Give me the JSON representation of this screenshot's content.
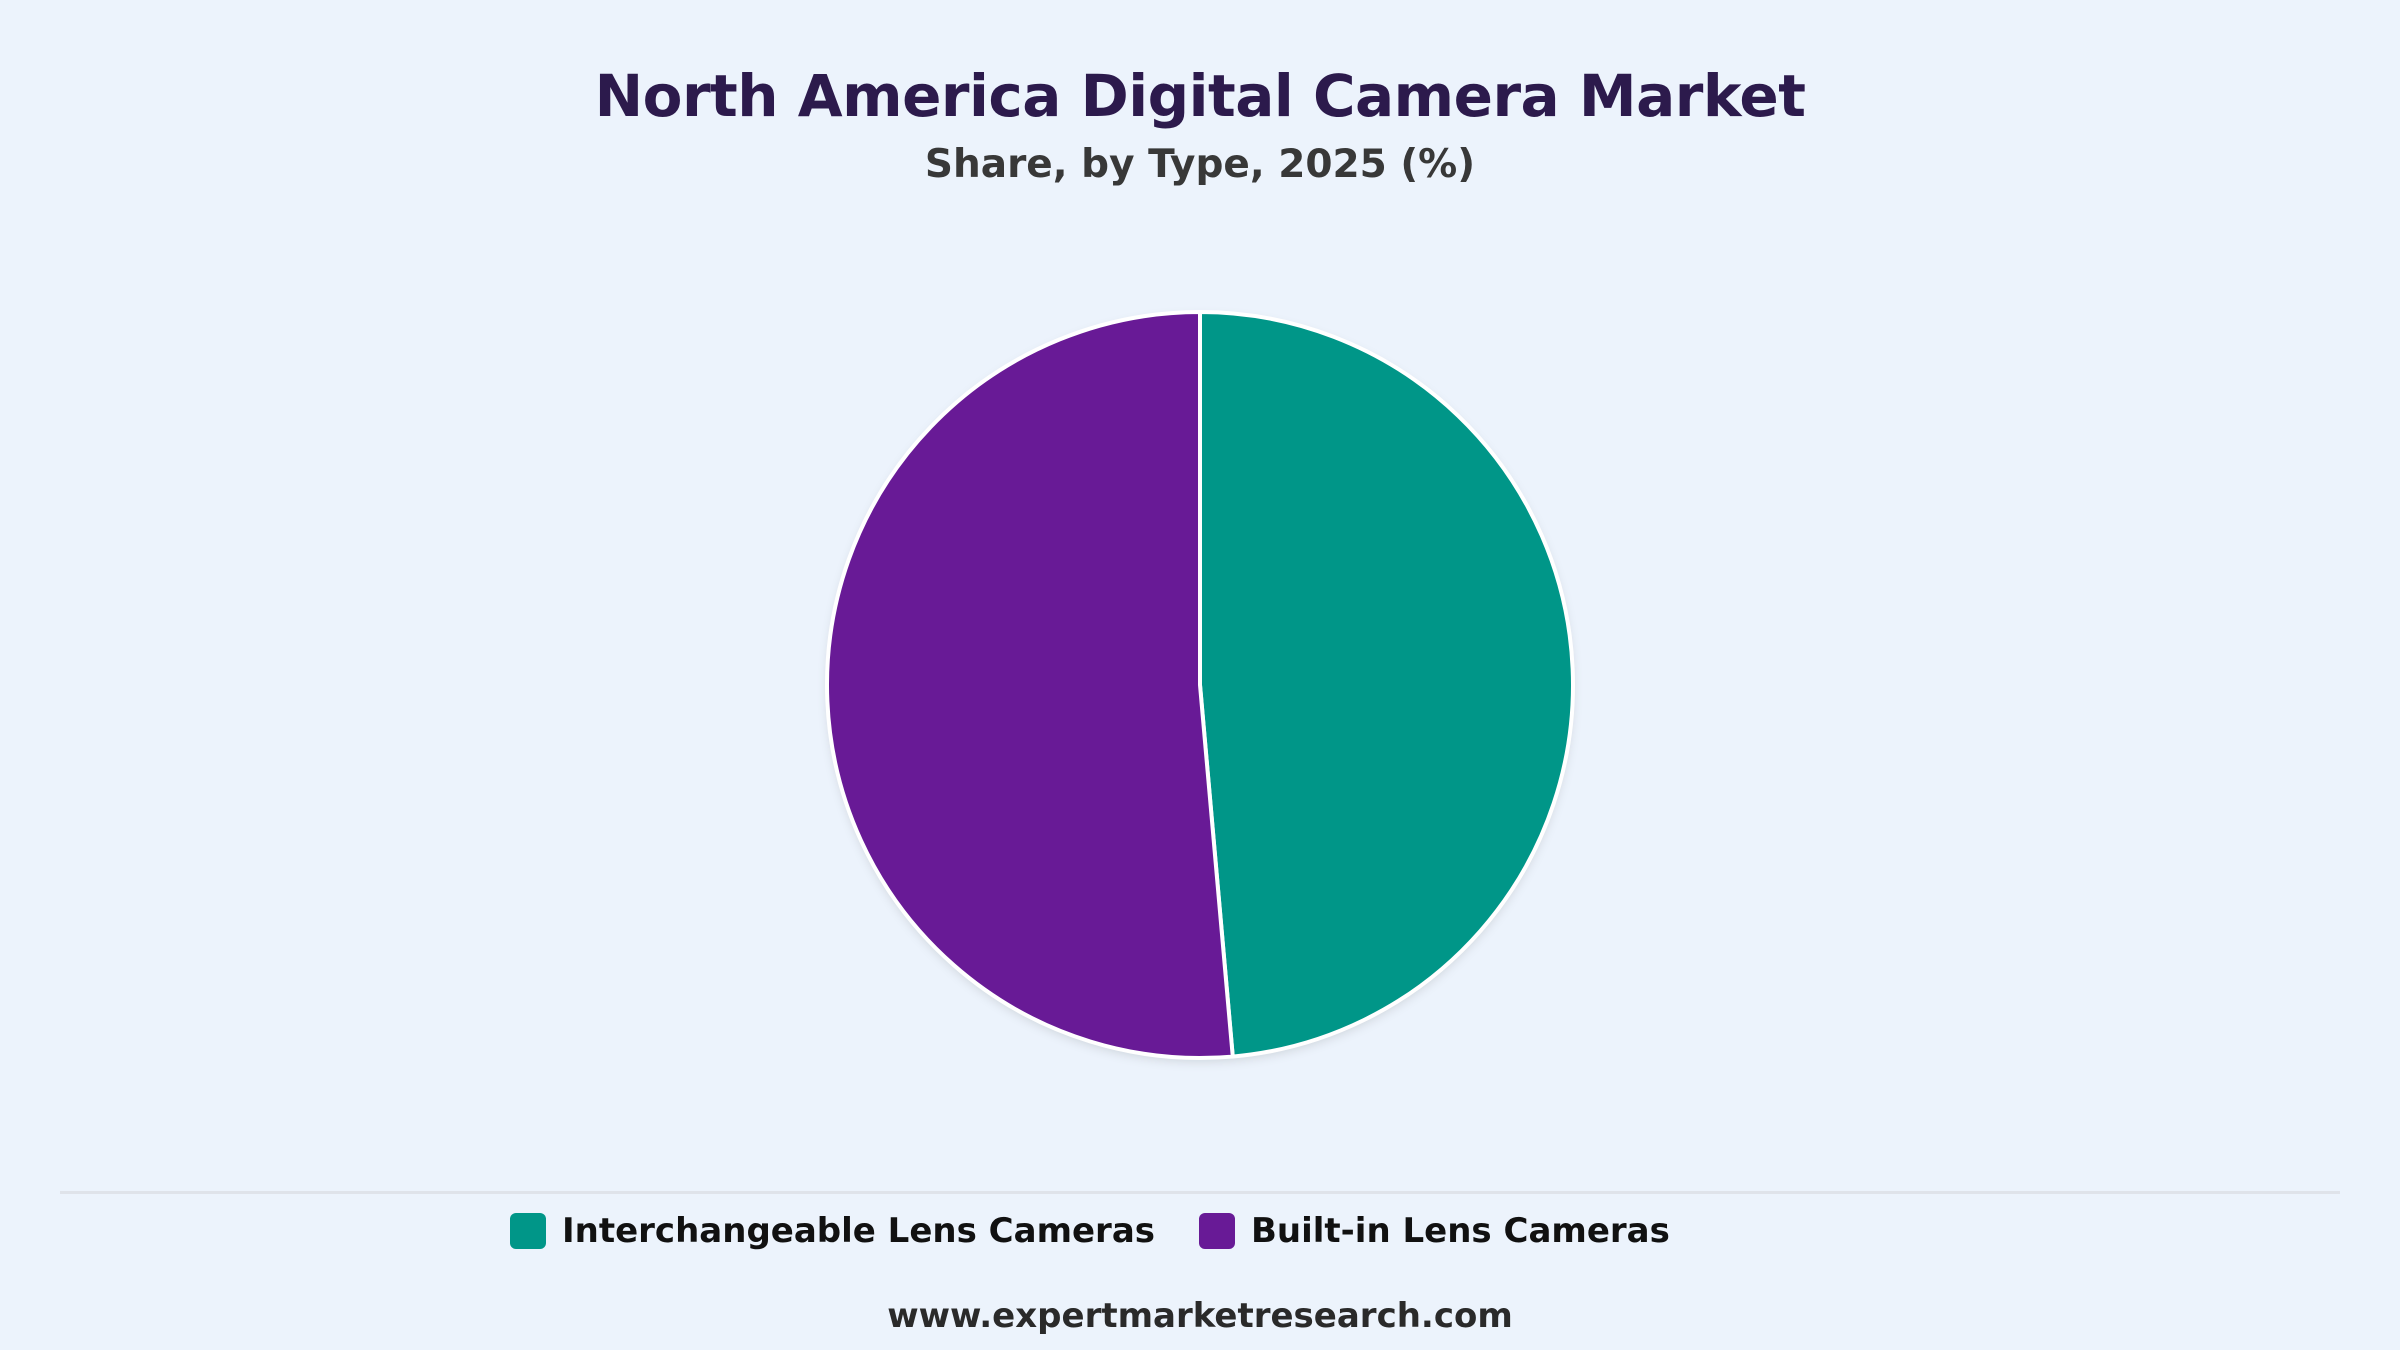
{
  "chart_data": {
    "type": "pie",
    "title": "North America Digital Camera Market",
    "subtitle": "Share, by Type, 2025 (%)",
    "categories": [
      "Interchangeable Lens Cameras",
      "Built-in Lens Cameras"
    ],
    "values": [
      48.6,
      51.4
    ],
    "colors": [
      "#009688",
      "#681a96"
    ],
    "legend": "bottom"
  },
  "footer": {
    "source": "www.expertmarketresearch.com"
  }
}
